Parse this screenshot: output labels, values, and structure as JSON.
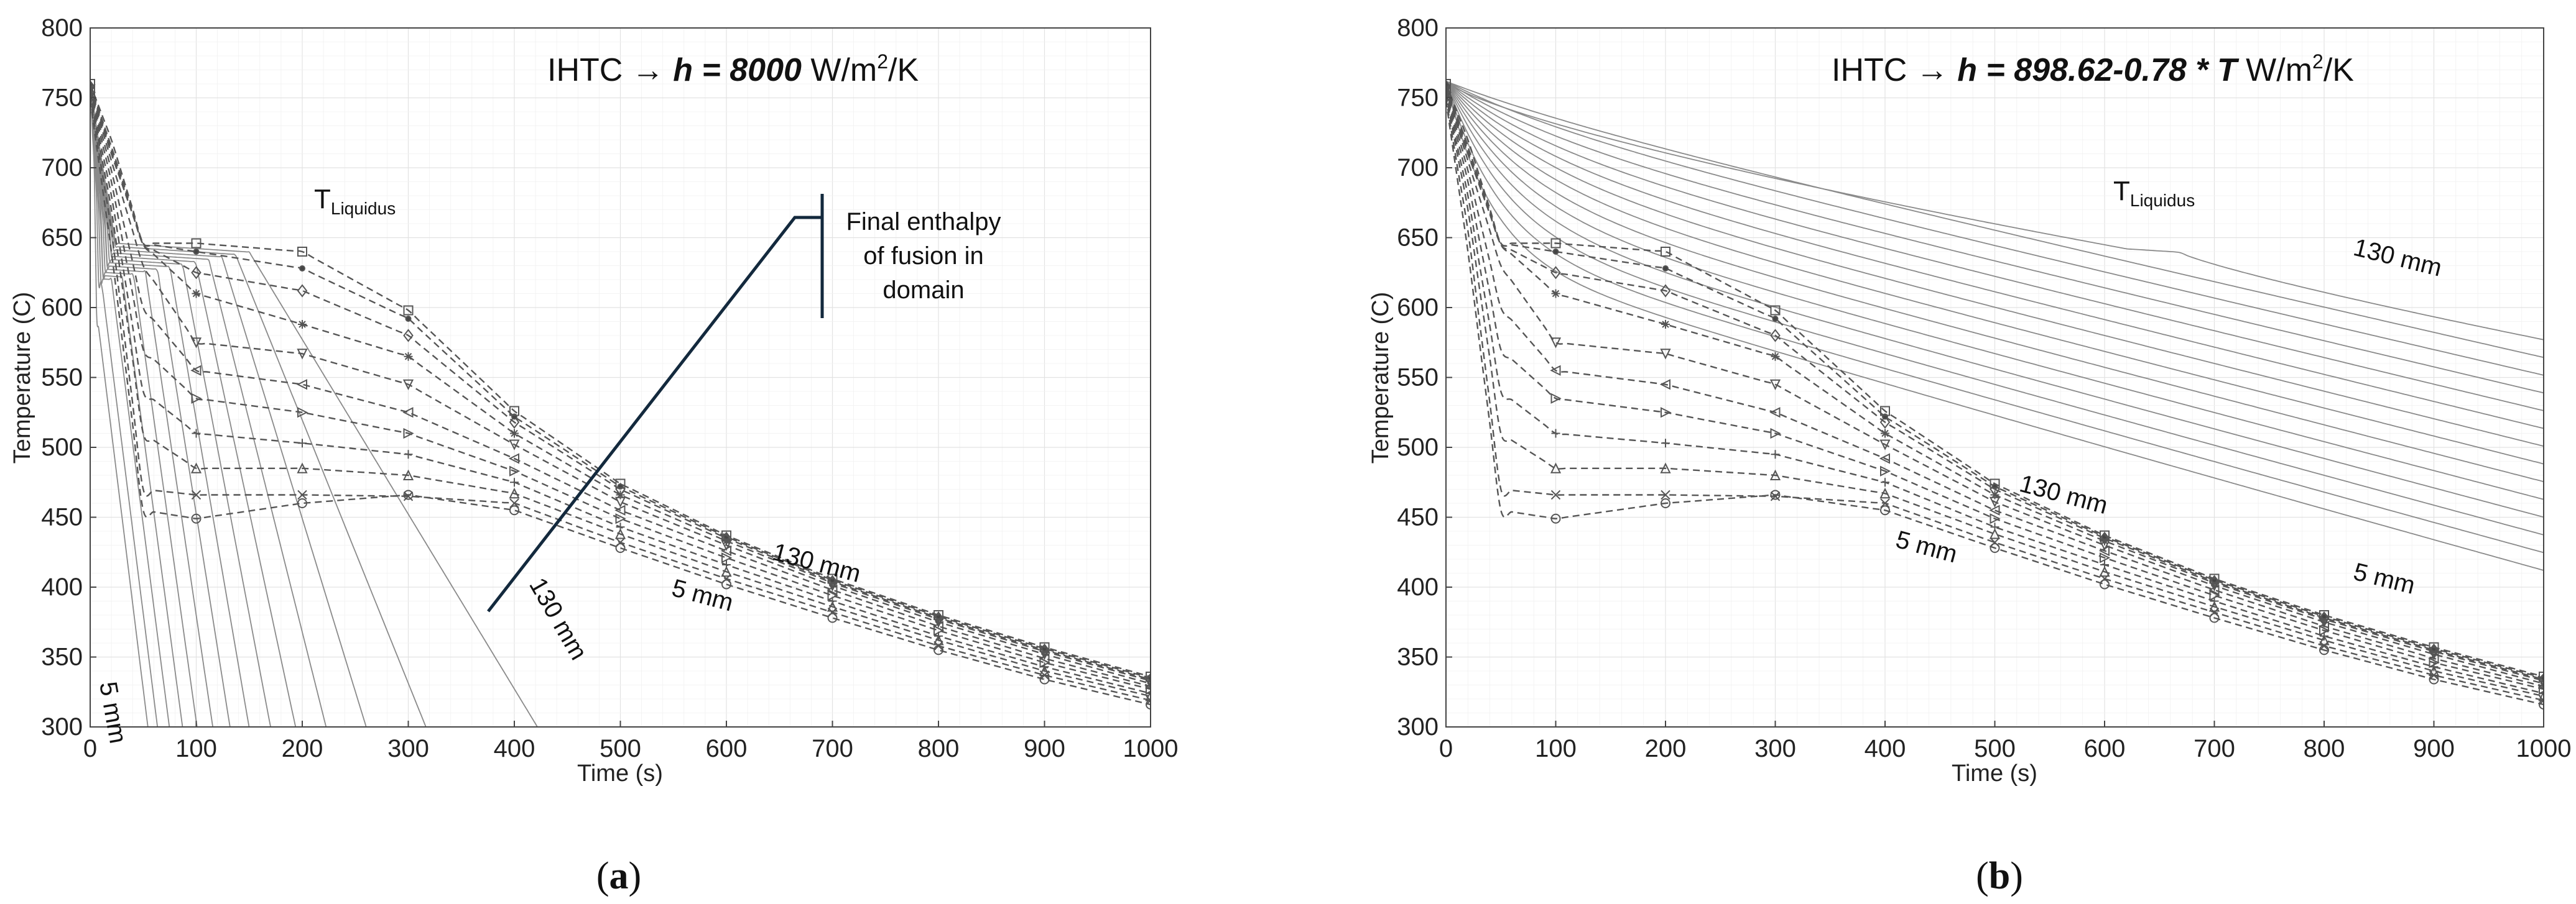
{
  "chart_data": [
    {
      "type": "line",
      "panel": "a",
      "caption_letter": "a",
      "title": {
        "pre": "IHTC → ",
        "eq": "h = 8000",
        "unit": " W/m",
        "sup": "2",
        "post": "/K"
      },
      "xlabel": "Time (s)",
      "ylabel": "Temperature (C)",
      "xlim": [
        0,
        1000
      ],
      "ylim": [
        300,
        800
      ],
      "xticks": [
        0,
        100,
        200,
        300,
        400,
        500,
        600,
        700,
        800,
        900,
        1000
      ],
      "yticks": [
        300,
        350,
        400,
        450,
        500,
        550,
        600,
        650,
        700,
        750,
        800
      ],
      "grid": true,
      "liquidus_label": {
        "main": "T",
        "sub": "Liquidus"
      },
      "final_enthalpy_label": [
        "Final enthalpy",
        "of fusion in",
        "domain"
      ],
      "solid_label_outer": "130 mm",
      "solid_label_inner": "5 mm",
      "dashed_label_outer": "130 mm",
      "dashed_label_inner": "5 mm",
      "solid_curves": {
        "count": 14,
        "start_temp": 762,
        "plateau_temp": 645
      },
      "dashed_series": [
        {
          "marker": "o",
          "values": [
            [
              0,
              748
            ],
            [
              20,
              640
            ],
            [
              50,
              455
            ],
            [
              100,
              449
            ],
            [
              200,
              460
            ],
            [
              300,
              466
            ],
            [
              400,
              455
            ],
            [
              500,
              428
            ],
            [
              600,
              402
            ],
            [
              700,
              378
            ],
            [
              800,
              355
            ],
            [
              900,
              334
            ],
            [
              1000,
              316
            ]
          ]
        },
        {
          "marker": "x",
          "values": [
            [
              0,
              750
            ],
            [
              20,
              655
            ],
            [
              50,
              470
            ],
            [
              100,
              466
            ],
            [
              200,
              466
            ],
            [
              300,
              465
            ],
            [
              400,
              460
            ],
            [
              500,
              432
            ],
            [
              600,
              406
            ],
            [
              700,
              382
            ],
            [
              800,
              358
            ],
            [
              900,
              337
            ],
            [
              1000,
              319
            ]
          ]
        },
        {
          "marker": "^",
          "values": [
            [
              0,
              752
            ],
            [
              20,
              670
            ],
            [
              50,
              510
            ],
            [
              100,
              485
            ],
            [
              200,
              485
            ],
            [
              300,
              480
            ],
            [
              400,
              467
            ],
            [
              500,
              438
            ],
            [
              600,
              411
            ],
            [
              700,
              386
            ],
            [
              800,
              362
            ],
            [
              900,
              340
            ],
            [
              1000,
              322
            ]
          ]
        },
        {
          "marker": "+",
          "values": [
            [
              0,
              753
            ],
            [
              20,
              680
            ],
            [
              50,
              540
            ],
            [
              100,
              510
            ],
            [
              200,
              503
            ],
            [
              300,
              495
            ],
            [
              400,
              475
            ],
            [
              500,
              443
            ],
            [
              600,
              416
            ],
            [
              700,
              390
            ],
            [
              800,
              365
            ],
            [
              900,
              343
            ],
            [
              1000,
              324
            ]
          ]
        },
        {
          "marker": ">",
          "values": [
            [
              0,
              754
            ],
            [
              20,
              690
            ],
            [
              50,
              570
            ],
            [
              100,
              535
            ],
            [
              200,
              525
            ],
            [
              300,
              510
            ],
            [
              400,
              483
            ],
            [
              500,
              449
            ],
            [
              600,
              421
            ],
            [
              700,
              394
            ],
            [
              800,
              369
            ],
            [
              900,
              346
            ],
            [
              1000,
              327
            ]
          ]
        },
        {
          "marker": "<",
          "values": [
            [
              0,
              755
            ],
            [
              20,
              698
            ],
            [
              50,
              600
            ],
            [
              100,
              555
            ],
            [
              200,
              545
            ],
            [
              300,
              525
            ],
            [
              400,
              492
            ],
            [
              500,
              455
            ],
            [
              600,
              426
            ],
            [
              700,
              398
            ],
            [
              800,
              372
            ],
            [
              900,
              349
            ],
            [
              1000,
              329
            ]
          ]
        },
        {
          "marker": "v",
          "values": [
            [
              0,
              756
            ],
            [
              20,
              705
            ],
            [
              50,
              630
            ],
            [
              100,
              575
            ],
            [
              200,
              567
            ],
            [
              300,
              545
            ],
            [
              400,
              502
            ],
            [
              500,
              461
            ],
            [
              600,
              430
            ],
            [
              700,
              401
            ],
            [
              800,
              375
            ],
            [
              900,
              352
            ],
            [
              1000,
              331
            ]
          ]
        },
        {
          "marker": "*",
          "values": [
            [
              0,
              757
            ],
            [
              20,
              710
            ],
            [
              50,
              645
            ],
            [
              100,
              610
            ],
            [
              200,
              588
            ],
            [
              300,
              565
            ],
            [
              400,
              510
            ],
            [
              500,
              466
            ],
            [
              600,
              433
            ],
            [
              700,
              403
            ],
            [
              800,
              377
            ],
            [
              900,
              354
            ],
            [
              1000,
              333
            ]
          ]
        },
        {
          "marker": "d",
          "values": [
            [
              0,
              758
            ],
            [
              20,
              712
            ],
            [
              50,
              645
            ],
            [
              100,
              625
            ],
            [
              200,
              612
            ],
            [
              300,
              580
            ],
            [
              400,
              518
            ],
            [
              500,
              470
            ],
            [
              600,
              435
            ],
            [
              700,
              404
            ],
            [
              800,
              378
            ],
            [
              900,
              355
            ],
            [
              1000,
              334
            ]
          ]
        },
        {
          "marker": ".",
          "values": [
            [
              0,
              759
            ],
            [
              20,
              715
            ],
            [
              50,
              646
            ],
            [
              100,
              640
            ],
            [
              200,
              628
            ],
            [
              300,
              592
            ],
            [
              400,
              522
            ],
            [
              500,
              472
            ],
            [
              600,
              436
            ],
            [
              700,
              405
            ],
            [
              800,
              379
            ],
            [
              900,
              356
            ],
            [
              1000,
              335
            ]
          ]
        },
        {
          "marker": "s",
          "values": [
            [
              0,
              760
            ],
            [
              20,
              720
            ],
            [
              50,
              646
            ],
            [
              100,
              646
            ],
            [
              200,
              640
            ],
            [
              300,
              598
            ],
            [
              400,
              526
            ],
            [
              500,
              474
            ],
            [
              600,
              437
            ],
            [
              700,
              406
            ],
            [
              800,
              380
            ],
            [
              900,
              357
            ],
            [
              1000,
              336
            ]
          ]
        }
      ]
    },
    {
      "type": "line",
      "panel": "b",
      "caption_letter": "b",
      "title": {
        "pre": "IHTC → ",
        "eq": "h = 898.62-0.78 * T",
        "unit": " W/m",
        "sup": "2",
        "post": "/K"
      },
      "xlabel": "Time (s)",
      "ylabel": "Temperature (C)",
      "xlim": [
        0,
        1000
      ],
      "ylim": [
        300,
        800
      ],
      "xticks": [
        0,
        100,
        200,
        300,
        400,
        500,
        600,
        700,
        800,
        900,
        1000
      ],
      "yticks": [
        300,
        350,
        400,
        450,
        500,
        550,
        600,
        650,
        700,
        750,
        800
      ],
      "grid": true,
      "liquidus_label": {
        "main": "T",
        "sub": "Liquidus"
      },
      "solid_label_outer": "130 mm",
      "solid_label_inner": "5 mm",
      "dashed_label_outer": "130 mm",
      "dashed_label_inner": "5 mm",
      "solid_curves": {
        "count": 14,
        "start_temp": 762,
        "end_temp_range": [
          412,
          577
        ]
      },
      "dashed_series": "same as panel a"
    }
  ]
}
